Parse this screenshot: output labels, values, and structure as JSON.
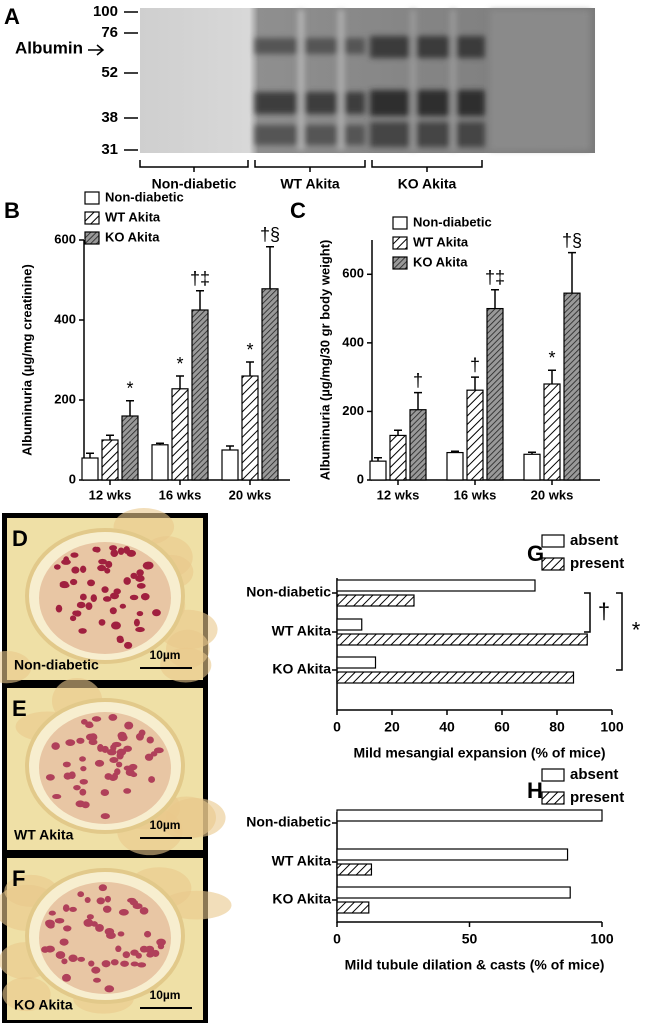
{
  "gel": {
    "label": "A",
    "markers": [
      "100",
      "76",
      "52",
      "38",
      "31"
    ],
    "band_label": "Albumin",
    "groups": [
      "Non-diabetic",
      "WT Akita",
      "KO Akita"
    ]
  },
  "micrographs": [
    {
      "label": "D",
      "caption": "Non-diabetic",
      "scale": "10µm"
    },
    {
      "label": "E",
      "caption": "WT Akita",
      "scale": "10µm"
    },
    {
      "label": "F",
      "caption": "KO Akita",
      "scale": "10µm"
    }
  ],
  "chart_data": [
    {
      "panel": "B",
      "type": "bar",
      "ylabel": "Albuminuria (µg/mg creatinine)",
      "categories": [
        "12 wks",
        "16 wks",
        "20 wks"
      ],
      "ylim": [
        0,
        600
      ],
      "yticks": [
        0,
        200,
        400,
        600
      ],
      "legend": "top-left",
      "series": [
        {
          "name": "Non-diabetic",
          "color": "#ffffff",
          "pattern": "none",
          "values": [
            55,
            88,
            75
          ],
          "errors": [
            12,
            4,
            10
          ]
        },
        {
          "name": "WT Akita",
          "color": "#ffffff",
          "pattern": "hatch",
          "values": [
            100,
            228,
            260
          ],
          "errors": [
            12,
            32,
            35
          ],
          "annotations": [
            null,
            "*",
            "*"
          ]
        },
        {
          "name": "KO Akita",
          "color": "#888888",
          "pattern": "dense-hatch",
          "values": [
            160,
            425,
            478
          ],
          "errors": [
            38,
            48,
            105
          ],
          "annotations": [
            "*",
            "†‡",
            "†§"
          ]
        }
      ]
    },
    {
      "panel": "C",
      "type": "bar",
      "ylabel": "Albuminuria (µg/mg/30 gr body weight)",
      "categories": [
        "12 wks",
        "16 wks",
        "20 wks"
      ],
      "ylim": [
        0,
        700
      ],
      "yticks": [
        0,
        200,
        400,
        600
      ],
      "legend": "top-left",
      "series": [
        {
          "name": "Non-diabetic",
          "color": "#ffffff",
          "pattern": "none",
          "values": [
            55,
            80,
            75
          ],
          "errors": [
            10,
            4,
            6
          ]
        },
        {
          "name": "WT Akita",
          "color": "#ffffff",
          "pattern": "hatch",
          "values": [
            130,
            262,
            280
          ],
          "errors": [
            15,
            38,
            40
          ],
          "annotations": [
            null,
            "†",
            "*"
          ]
        },
        {
          "name": "KO Akita",
          "color": "#888888",
          "pattern": "dense-hatch",
          "values": [
            205,
            500,
            545
          ],
          "errors": [
            50,
            55,
            118
          ],
          "annotations": [
            "†",
            "†‡",
            "†§"
          ]
        }
      ]
    },
    {
      "panel": "G",
      "type": "barh",
      "xlabel": "Mild mesangial expansion (% of mice)",
      "categories": [
        "Non-diabetic",
        "WT Akita",
        "KO Akita"
      ],
      "xlim": [
        0,
        100
      ],
      "xticks": [
        0,
        20,
        40,
        60,
        80,
        100
      ],
      "legend": "top-right",
      "brackets": [
        "†",
        "*"
      ],
      "series": [
        {
          "name": "absent",
          "color": "#ffffff",
          "pattern": "none",
          "values": [
            72,
            9,
            14
          ]
        },
        {
          "name": "present",
          "color": "#888888",
          "pattern": "hatch",
          "values": [
            28,
            91,
            86
          ]
        }
      ]
    },
    {
      "panel": "H",
      "type": "barh",
      "xlabel": "Mild tubule dilation & casts (% of mice)",
      "categories": [
        "Non-diabetic",
        "WT Akita",
        "KO Akita"
      ],
      "xlim": [
        0,
        100
      ],
      "xticks": [
        0,
        50,
        100
      ],
      "legend": "top-right",
      "series": [
        {
          "name": "absent",
          "color": "#ffffff",
          "pattern": "none",
          "values": [
            100,
            87,
            88
          ]
        },
        {
          "name": "present",
          "color": "#888888",
          "pattern": "hatch",
          "values": [
            0,
            13,
            12
          ]
        }
      ]
    }
  ]
}
